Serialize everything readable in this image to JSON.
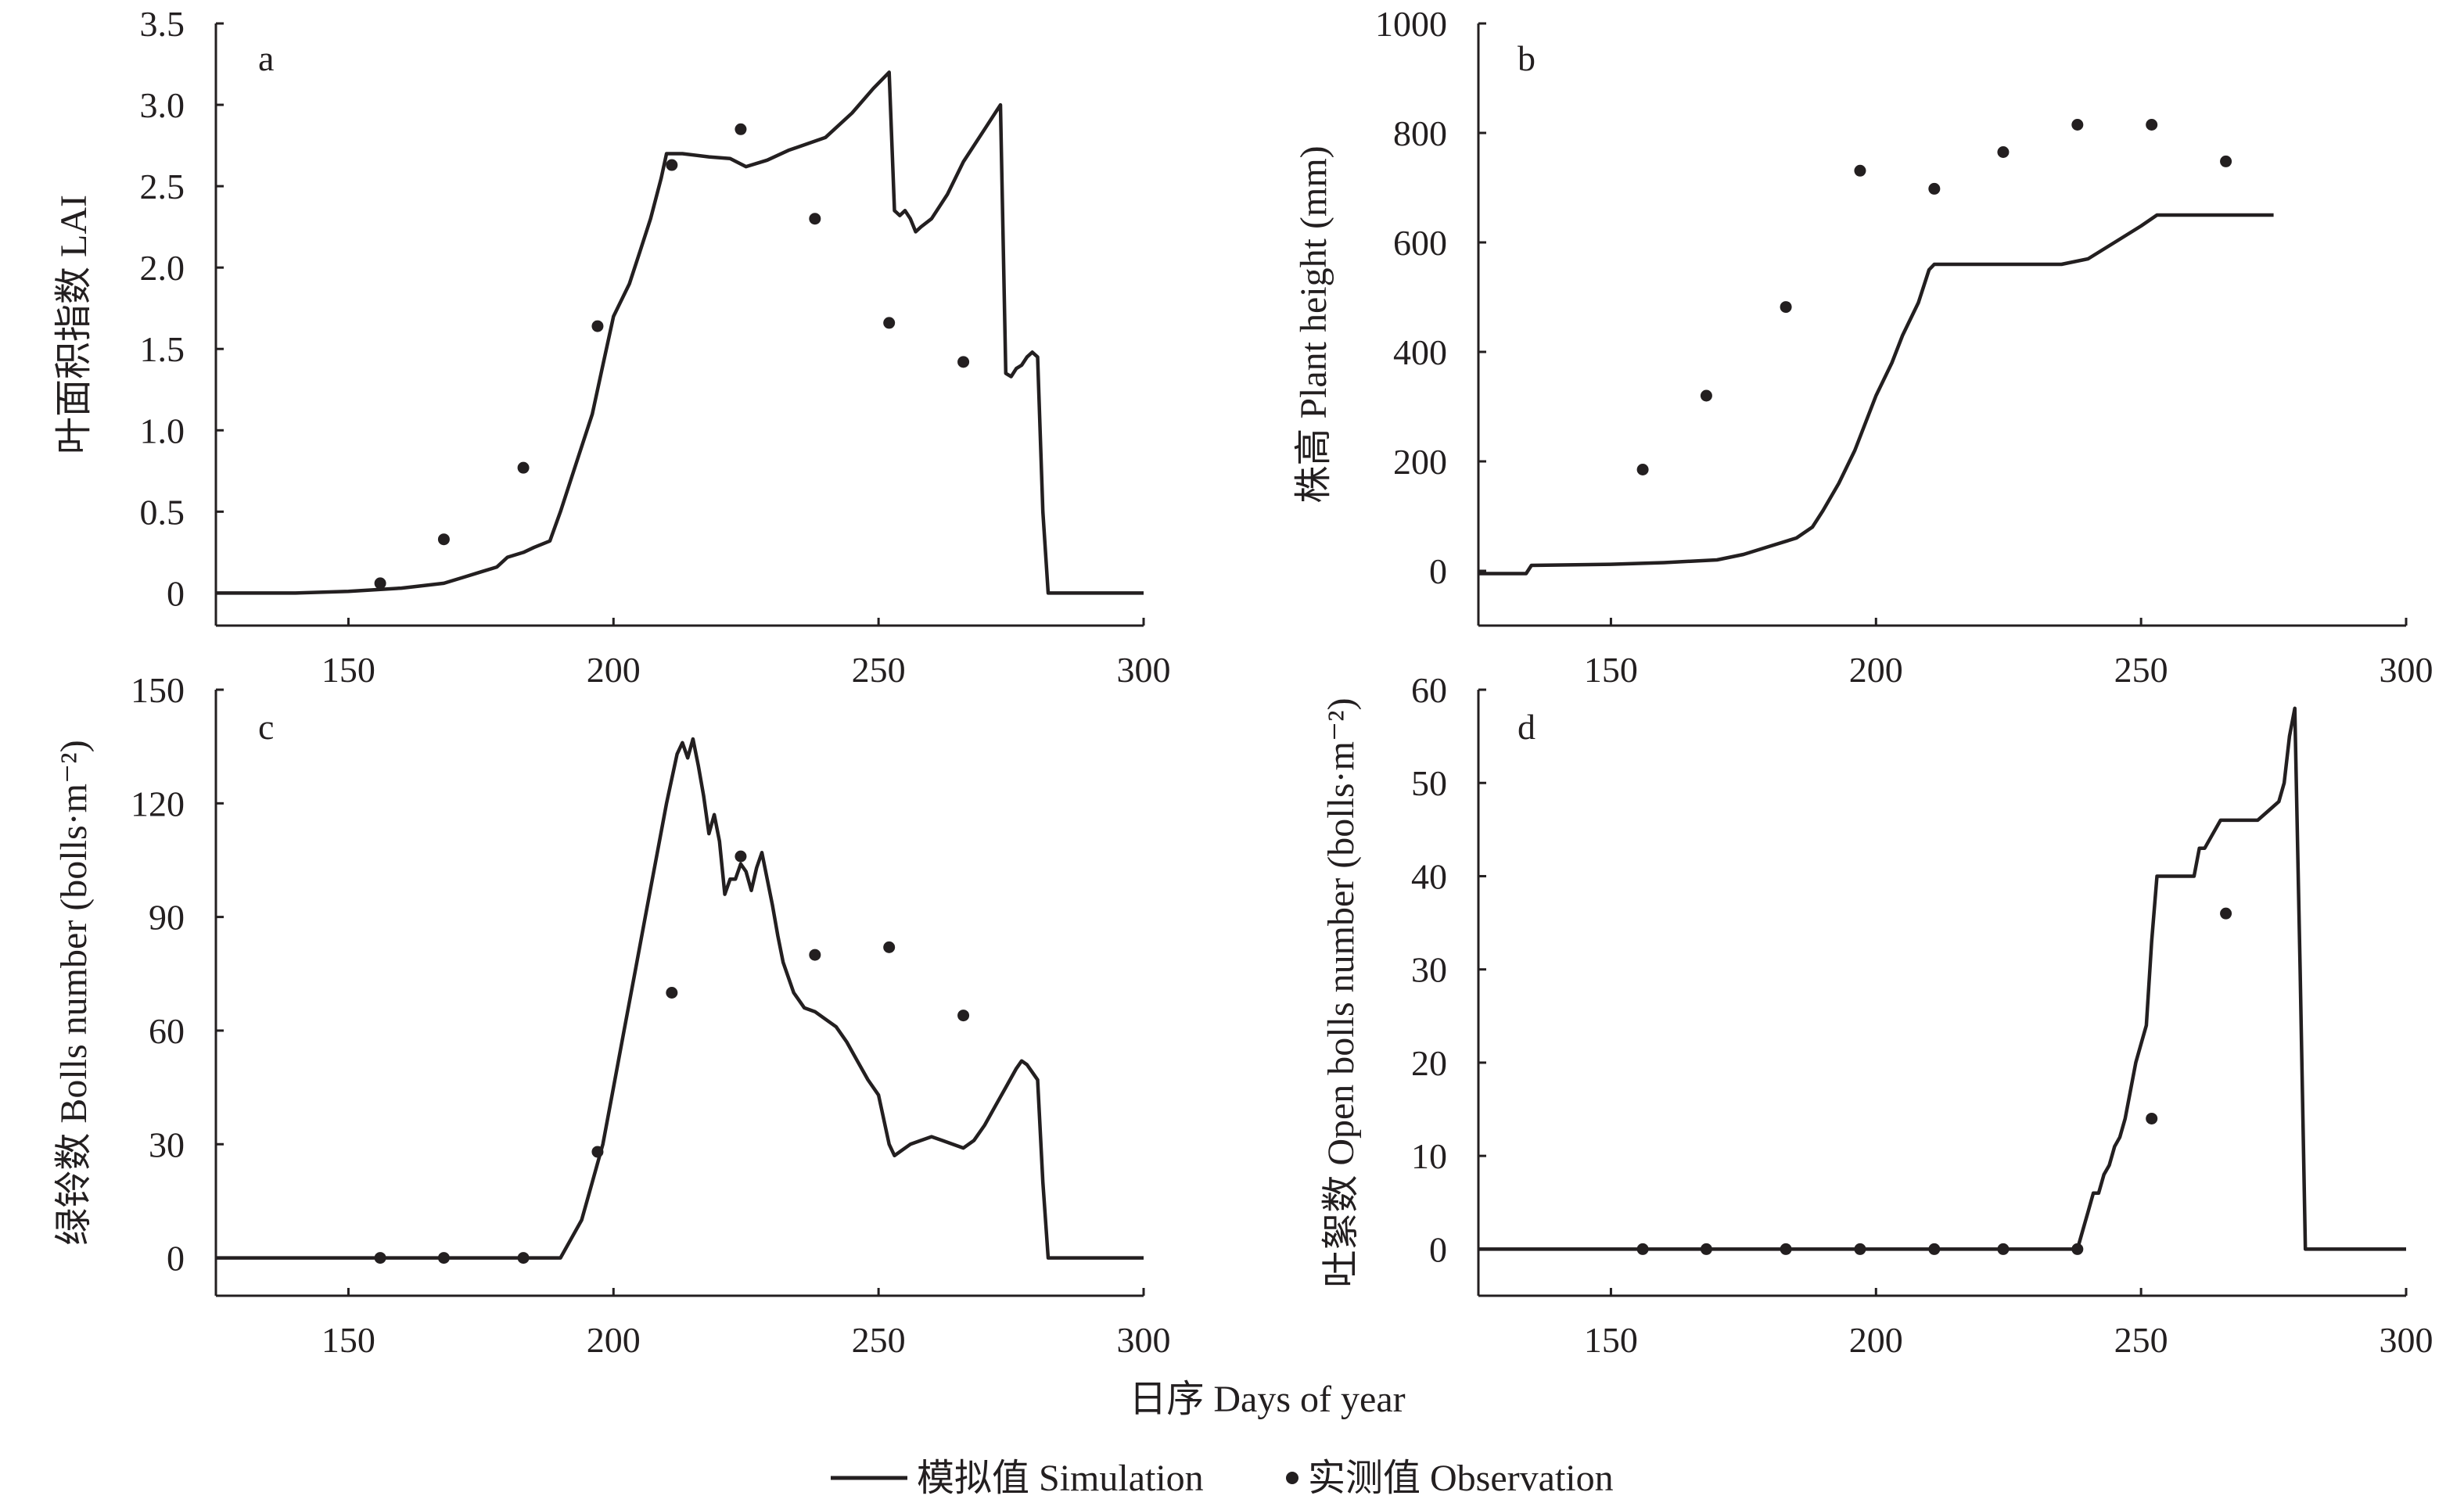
{
  "figure": {
    "xlabel": "日序 Days of year",
    "legend": {
      "simulation": "模拟值 Simulation",
      "observation": "实测值 Observation"
    },
    "colors": {
      "line": "#231f20",
      "marker": "#231f20",
      "axis": "#231f20"
    }
  },
  "chart_data": [
    {
      "type": "line",
      "panel": "a",
      "ylabel": "叶面积指数 LAI",
      "xlim": [
        125,
        300
      ],
      "ylim": [
        -0.2,
        3.5
      ],
      "xticks": [
        150,
        200,
        250,
        300
      ],
      "yticks": [
        0,
        0.5,
        1.0,
        1.5,
        2.0,
        2.5,
        3.0,
        3.5
      ],
      "ytick_labels": [
        "0",
        "0.5",
        "1.0",
        "1.5",
        "2.0",
        "2.5",
        "3.0",
        "3.5"
      ],
      "series": [
        {
          "kind": "line",
          "x": [
            125,
            140,
            150,
            160,
            168,
            172,
            175,
            178,
            180,
            183,
            185,
            188,
            190,
            193,
            196,
            198,
            200,
            203,
            205,
            207,
            209,
            210,
            213,
            218,
            222,
            225,
            229,
            233,
            240,
            245,
            249,
            252,
            253,
            254,
            255,
            256,
            257,
            258,
            260,
            263,
            266,
            270,
            273,
            274,
            275,
            276,
            277,
            278,
            279,
            280,
            281,
            282,
            290,
            300
          ],
          "y": [
            0,
            0,
            0.01,
            0.03,
            0.06,
            0.1,
            0.13,
            0.16,
            0.22,
            0.25,
            0.28,
            0.32,
            0.5,
            0.8,
            1.1,
            1.4,
            1.7,
            1.9,
            2.1,
            2.3,
            2.55,
            2.7,
            2.7,
            2.68,
            2.67,
            2.62,
            2.66,
            2.72,
            2.8,
            2.95,
            3.1,
            3.2,
            2.35,
            2.32,
            2.35,
            2.3,
            2.22,
            2.25,
            2.3,
            2.45,
            2.65,
            2.85,
            3.0,
            1.35,
            1.33,
            1.38,
            1.4,
            1.45,
            1.48,
            1.45,
            0.5,
            0,
            0,
            0
          ]
        },
        {
          "kind": "scatter",
          "x": [
            156,
            168,
            183,
            197,
            211,
            224,
            238,
            252,
            266
          ],
          "y": [
            0.06,
            0.33,
            0.77,
            1.64,
            2.63,
            2.85,
            2.3,
            1.66,
            1.42
          ]
        }
      ]
    },
    {
      "type": "line",
      "panel": "b",
      "ylabel": "株高 Plant height (mm)",
      "xlim": [
        125,
        300
      ],
      "ylim": [
        -100,
        1000
      ],
      "xticks": [
        150,
        200,
        250,
        300
      ],
      "yticks": [
        0,
        200,
        400,
        600,
        800,
        1000
      ],
      "ytick_labels": [
        "0",
        "200",
        "400",
        "600",
        "800",
        "1000"
      ],
      "series": [
        {
          "kind": "line",
          "x": [
            125,
            134,
            135,
            150,
            160,
            170,
            175,
            180,
            185,
            188,
            190,
            193,
            196,
            200,
            203,
            205,
            208,
            210,
            211,
            220,
            230,
            235,
            240,
            245,
            250,
            253,
            260,
            270,
            275
          ],
          "y": [
            -5,
            -5,
            10,
            12,
            15,
            20,
            30,
            45,
            60,
            80,
            110,
            160,
            220,
            320,
            380,
            430,
            490,
            550,
            560,
            560,
            560,
            560,
            570,
            600,
            630,
            650,
            650,
            650,
            650
          ]
        },
        {
          "kind": "scatter",
          "x": [
            156,
            168,
            183,
            197,
            211,
            224,
            238,
            252,
            266
          ],
          "y": [
            185,
            320,
            482,
            731,
            698,
            765,
            815,
            815,
            748
          ]
        }
      ]
    },
    {
      "type": "line",
      "panel": "c",
      "ylabel": "绿铃数 Bolls number (bolls·m⁻²)",
      "xlim": [
        125,
        300
      ],
      "ylim": [
        -10,
        150
      ],
      "xticks": [
        150,
        200,
        250,
        300
      ],
      "yticks": [
        0,
        30,
        60,
        90,
        120,
        150
      ],
      "ytick_labels": [
        "0",
        "30",
        "60",
        "90",
        "120",
        "150"
      ],
      "series": [
        {
          "kind": "line",
          "x": [
            125,
            190,
            192,
            194,
            196,
            198,
            200,
            202,
            204,
            206,
            208,
            210,
            212,
            213,
            214,
            215,
            216,
            217,
            218,
            219,
            220,
            221,
            222,
            223,
            224,
            225,
            226,
            227,
            228,
            229,
            230,
            231,
            232,
            234,
            236,
            238,
            240,
            242,
            244,
            246,
            248,
            250,
            252,
            253,
            254,
            256,
            258,
            260,
            262,
            264,
            266,
            268,
            270,
            272,
            274,
            276,
            277,
            278,
            279,
            280,
            281,
            282,
            290,
            300
          ],
          "y": [
            0,
            0,
            5,
            10,
            20,
            30,
            45,
            60,
            75,
            90,
            105,
            120,
            133,
            136,
            132,
            137,
            130,
            122,
            112,
            117,
            110,
            96,
            100,
            100,
            104,
            102,
            97,
            103,
            107,
            100,
            93,
            85,
            78,
            70,
            66,
            65,
            63,
            61,
            57,
            52,
            47,
            43,
            30,
            27,
            28,
            30,
            31,
            32,
            31,
            30,
            29,
            31,
            35,
            40,
            45,
            50,
            52,
            51,
            49,
            47,
            20,
            0,
            0,
            0
          ]
        },
        {
          "kind": "scatter",
          "x": [
            156,
            168,
            183,
            197,
            211,
            224,
            238,
            252,
            266
          ],
          "y": [
            0,
            0,
            0,
            28,
            70,
            106,
            80,
            82,
            64
          ]
        }
      ]
    },
    {
      "type": "line",
      "panel": "d",
      "ylabel": "吐絮数 Open bolls number (bolls·m⁻²)",
      "xlim": [
        125,
        300
      ],
      "ylim": [
        -5,
        60
      ],
      "xticks": [
        150,
        200,
        250,
        300
      ],
      "yticks": [
        0,
        10,
        20,
        30,
        40,
        50,
        60
      ],
      "ytick_labels": [
        "0",
        "10",
        "20",
        "30",
        "40",
        "50",
        "60"
      ],
      "series": [
        {
          "kind": "line",
          "x": [
            125,
            238,
            239,
            240,
            241,
            242,
            243,
            244,
            245,
            246,
            247,
            248,
            249,
            250,
            251,
            252,
            253,
            254,
            255,
            256,
            257,
            258,
            259,
            260,
            261,
            262,
            263,
            264,
            265,
            266,
            267,
            268,
            270,
            272,
            274,
            276,
            277,
            278,
            279,
            280,
            281,
            282,
            290,
            300
          ],
          "y": [
            0,
            0,
            2,
            4,
            6,
            6,
            8,
            9,
            11,
            12,
            14,
            17,
            20,
            22,
            24,
            33,
            40,
            40,
            40,
            40,
            40,
            40,
            40,
            40,
            43,
            43,
            44,
            45,
            46,
            46,
            46,
            46,
            46,
            46,
            47,
            48,
            50,
            55,
            58,
            30,
            0,
            0,
            0,
            0
          ]
        },
        {
          "kind": "scatter",
          "x": [
            156,
            168,
            183,
            197,
            211,
            224,
            238,
            252,
            266
          ],
          "y": [
            0,
            0,
            0,
            0,
            0,
            0,
            0,
            14,
            36
          ]
        }
      ]
    }
  ]
}
